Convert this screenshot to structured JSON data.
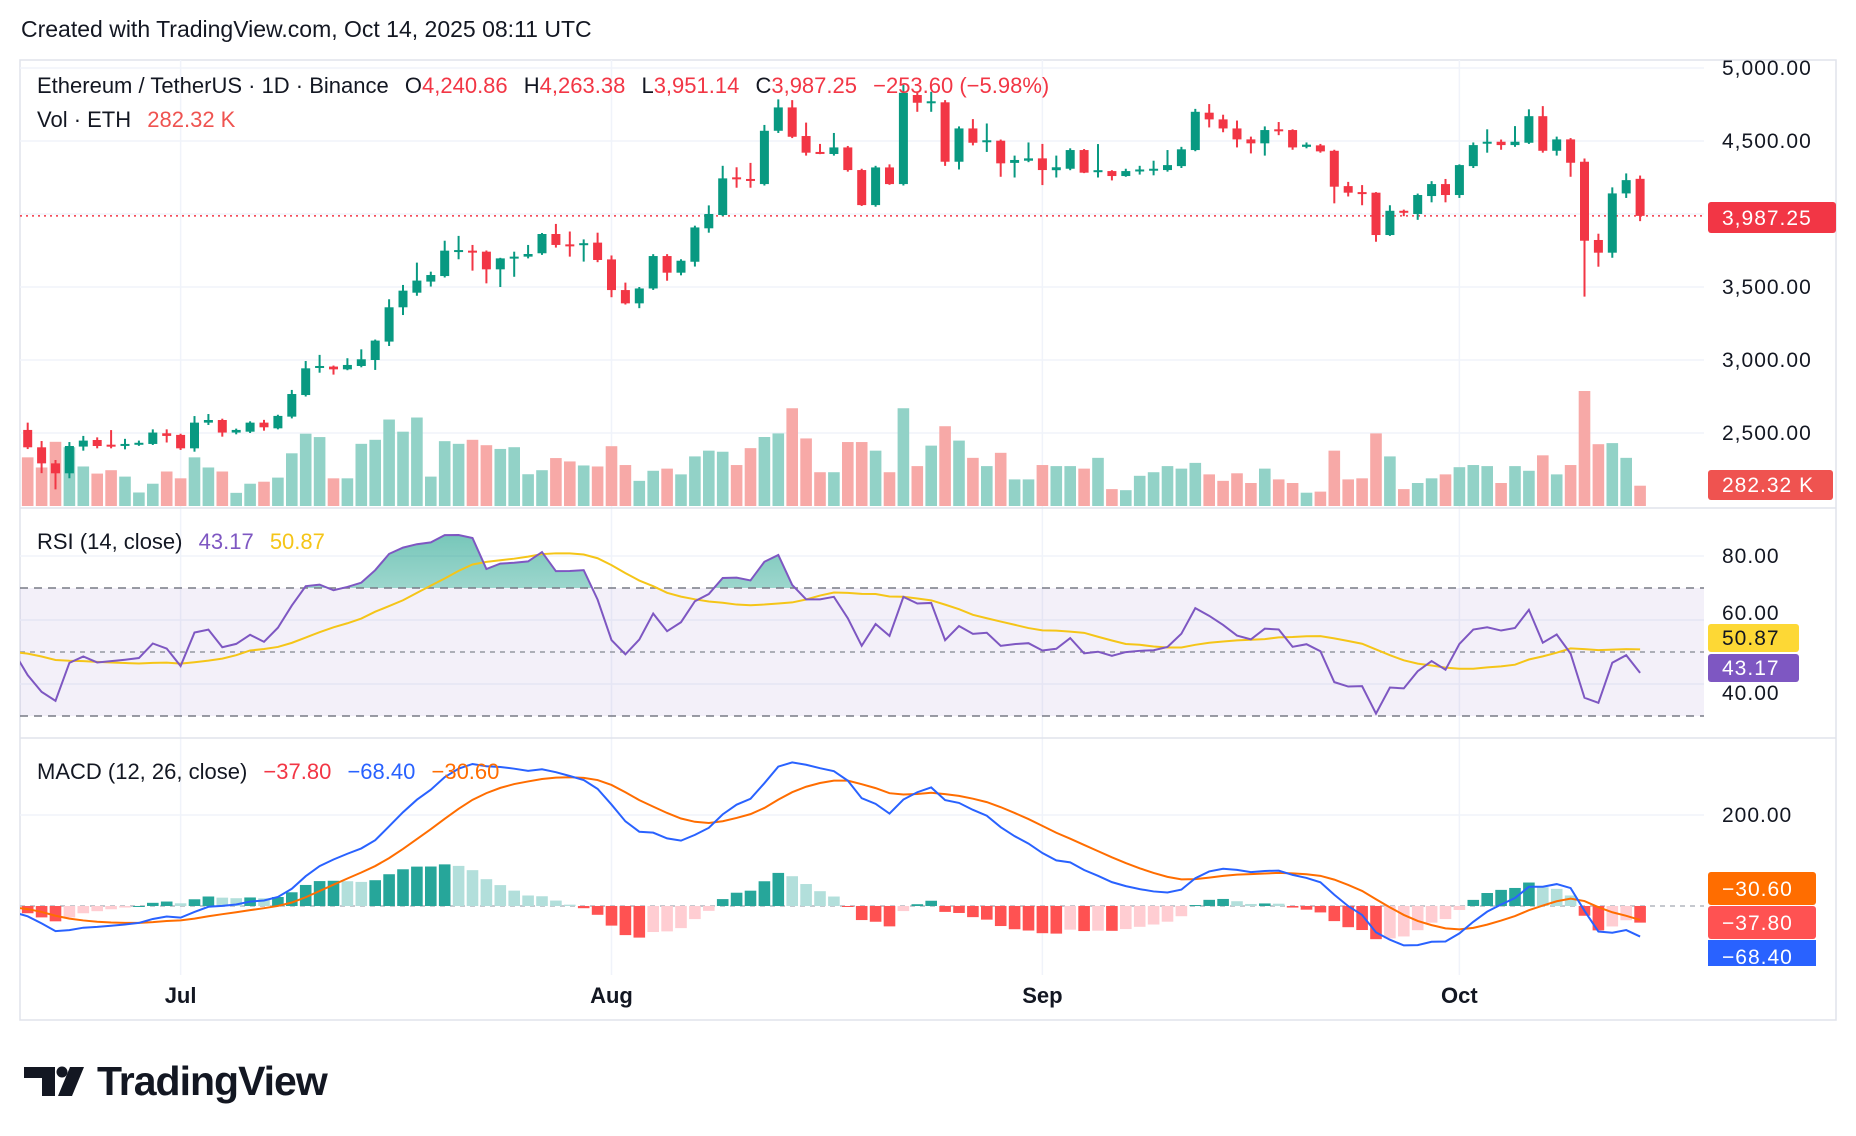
{
  "header": {
    "created": "Created with TradingView.com, Oct 14, 2025 08:11 UTC"
  },
  "legend": {
    "symbol": "Ethereum / TetherUS · 1D · Binance",
    "o_label": "O",
    "o": "4,240.86",
    "h_label": "H",
    "h": "4,263.38",
    "l_label": "L",
    "l": "3,951.14",
    "c_label": "C",
    "c": "3,987.25",
    "change": "−253.60 (−5.98%)",
    "vol_label": "Vol · ETH",
    "vol": "282.32 K"
  },
  "rsi_legend": {
    "title": "RSI (14, close)",
    "rsi": "43.17",
    "ma": "50.87"
  },
  "macd_legend": {
    "title": "MACD (12, 26, close)",
    "hist": "−37.80",
    "macd": "−68.40",
    "signal": "−30.60"
  },
  "tags": {
    "last_price": "3,987.25",
    "volume": "282.32 K",
    "rsi_ma": "50.87",
    "rsi": "43.17",
    "macd_signal": "−30.60",
    "macd_hist": "−37.80",
    "macd": "−68.40"
  },
  "colors": {
    "up": "#089981",
    "down": "#f23645",
    "vol_up": "#92d2c7",
    "vol_down": "#f7a9a7",
    "rsi": "#7e57c2",
    "rsi_ma": "#f5c518",
    "macd": "#2962ff",
    "signal": "#ff6d00",
    "hist_up_strong": "#26a69a",
    "hist_up_weak": "#b2dfdb",
    "hist_down_strong": "#ff5252",
    "hist_down_weak": "#ffcdd2",
    "grid": "#f0f3fa"
  },
  "logo": {
    "text": "TradingView"
  },
  "chart_data": [
    {
      "type": "candlestick",
      "title": "Ethereum / TetherUS · 1D · Binance",
      "y_ticks": [
        {
          "v": 5000,
          "label": "5,000.00"
        },
        {
          "v": 4500,
          "label": "4,500.00"
        },
        {
          "v": 3500,
          "label": "3,500.00"
        },
        {
          "v": 3000,
          "label": "3,000.00"
        },
        {
          "v": 2500,
          "label": "2,500.00"
        }
      ],
      "ylim": [
        2250,
        5100
      ],
      "last_price_line": 3987.25,
      "x_ticks": [
        {
          "date": "2025-07-01",
          "label": "Jul"
        },
        {
          "date": "2025-08-01",
          "label": "Aug"
        },
        {
          "date": "2025-09-01",
          "label": "Sep"
        },
        {
          "date": "2025-10-01",
          "label": "Oct"
        }
      ],
      "columns": [
        "date",
        "open",
        "high",
        "low",
        "close",
        "volume_k"
      ],
      "candles": [
        [
          "2025-06-19",
          2540,
          2580,
          2500,
          2525,
          290
        ],
        [
          "2025-06-20",
          2521,
          2571,
          2390,
          2402,
          677
        ],
        [
          "2025-06-21",
          2402,
          2445,
          2225,
          2292,
          536
        ],
        [
          "2025-06-22",
          2292,
          2315,
          2114,
          2224,
          893
        ],
        [
          "2025-06-23",
          2224,
          2438,
          2190,
          2411,
          818
        ],
        [
          "2025-06-24",
          2407,
          2480,
          2379,
          2448,
          550
        ],
        [
          "2025-06-25",
          2452,
          2470,
          2395,
          2411,
          451
        ],
        [
          "2025-06-26",
          2420,
          2520,
          2395,
          2418,
          498
        ],
        [
          "2025-06-27",
          2418,
          2460,
          2388,
          2425,
          409
        ],
        [
          "2025-06-28",
          2425,
          2448,
          2412,
          2433,
          188
        ],
        [
          "2025-06-29",
          2425,
          2525,
          2418,
          2503,
          310
        ],
        [
          "2025-06-30",
          2498,
          2525,
          2435,
          2480,
          480
        ],
        [
          "2025-07-01",
          2487,
          2495,
          2384,
          2395,
          385
        ],
        [
          "2025-07-02",
          2395,
          2616,
          2372,
          2571,
          677
        ],
        [
          "2025-07-03",
          2571,
          2630,
          2555,
          2589,
          536
        ],
        [
          "2025-07-04",
          2589,
          2598,
          2475,
          2503,
          480
        ],
        [
          "2025-07-05",
          2503,
          2530,
          2491,
          2521,
          183
        ],
        [
          "2025-07-06",
          2509,
          2580,
          2500,
          2571,
          310
        ],
        [
          "2025-07-07",
          2571,
          2590,
          2516,
          2539,
          338
        ],
        [
          "2025-07-08",
          2532,
          2625,
          2525,
          2617,
          395
        ],
        [
          "2025-07-09",
          2612,
          2795,
          2600,
          2767,
          733
        ],
        [
          "2025-07-10",
          2760,
          2993,
          2750,
          2943,
          1006
        ],
        [
          "2025-07-11",
          2950,
          3035,
          2913,
          2959,
          959
        ],
        [
          "2025-07-12",
          2955,
          2962,
          2900,
          2936,
          385
        ],
        [
          "2025-07-13",
          2936,
          3012,
          2930,
          2966,
          385
        ],
        [
          "2025-07-14",
          2959,
          3073,
          2950,
          3005,
          865
        ],
        [
          "2025-07-15",
          3000,
          3140,
          2932,
          3133,
          921
        ],
        [
          "2025-07-16",
          3126,
          3416,
          3096,
          3361,
          1203
        ],
        [
          "2025-07-17",
          3361,
          3514,
          3308,
          3475,
          1034
        ],
        [
          "2025-07-18",
          3461,
          3667,
          3440,
          3544,
          1231
        ],
        [
          "2025-07-19",
          3537,
          3605,
          3503,
          3582,
          409
        ],
        [
          "2025-07-20",
          3575,
          3817,
          3565,
          3749,
          902
        ],
        [
          "2025-07-21",
          3749,
          3850,
          3690,
          3753,
          865
        ],
        [
          "2025-07-22",
          3749,
          3788,
          3612,
          3742,
          921
        ],
        [
          "2025-07-23",
          3742,
          3750,
          3525,
          3621,
          846
        ],
        [
          "2025-07-24",
          3621,
          3700,
          3500,
          3696,
          794
        ],
        [
          "2025-07-25",
          3696,
          3742,
          3570,
          3708,
          818
        ],
        [
          "2025-07-26",
          3708,
          3788,
          3696,
          3726,
          442
        ],
        [
          "2025-07-27",
          3731,
          3870,
          3720,
          3863,
          498
        ],
        [
          "2025-07-28",
          3863,
          3932,
          3770,
          3788,
          667
        ],
        [
          "2025-07-29",
          3792,
          3880,
          3708,
          3790,
          620
        ],
        [
          "2025-07-30",
          3792,
          3826,
          3674,
          3800,
          564
        ],
        [
          "2025-07-31",
          3804,
          3872,
          3670,
          3685,
          550
        ],
        [
          "2025-08-01",
          3689,
          3716,
          3430,
          3479,
          832
        ],
        [
          "2025-08-02",
          3479,
          3530,
          3380,
          3388,
          570
        ],
        [
          "2025-08-03",
          3388,
          3500,
          3355,
          3490,
          350
        ],
        [
          "2025-08-04",
          3490,
          3725,
          3480,
          3712,
          490
        ],
        [
          "2025-08-05",
          3712,
          3725,
          3543,
          3598,
          520
        ],
        [
          "2025-08-06",
          3598,
          3690,
          3580,
          3680,
          440
        ],
        [
          "2025-08-07",
          3673,
          3920,
          3640,
          3908,
          690
        ],
        [
          "2025-08-08",
          3902,
          4059,
          3872,
          4000,
          770
        ],
        [
          "2025-08-09",
          3993,
          4330,
          3985,
          4244,
          755
        ],
        [
          "2025-08-10",
          4251,
          4320,
          4180,
          4249,
          570
        ],
        [
          "2025-08-11",
          4240,
          4350,
          4180,
          4233,
          805
        ],
        [
          "2025-08-12",
          4205,
          4610,
          4195,
          4570,
          960
        ],
        [
          "2025-08-13",
          4570,
          4785,
          4555,
          4730,
          1010
        ],
        [
          "2025-08-14",
          4730,
          4780,
          4520,
          4529,
          1360
        ],
        [
          "2025-08-15",
          4534,
          4626,
          4400,
          4420,
          940
        ],
        [
          "2025-08-16",
          4425,
          4480,
          4410,
          4420,
          470
        ],
        [
          "2025-08-17",
          4411,
          4555,
          4400,
          4456,
          470
        ],
        [
          "2025-08-18",
          4456,
          4466,
          4290,
          4301,
          890
        ],
        [
          "2025-08-19",
          4301,
          4310,
          4055,
          4061,
          890
        ],
        [
          "2025-08-20",
          4061,
          4330,
          4050,
          4319,
          770
        ],
        [
          "2025-08-21",
          4319,
          4340,
          4200,
          4205,
          470
        ],
        [
          "2025-08-22",
          4205,
          4885,
          4195,
          4830,
          1360
        ],
        [
          "2025-08-23",
          4815,
          4830,
          4700,
          4762,
          555
        ],
        [
          "2025-08-24",
          4762,
          4837,
          4700,
          4772,
          840
        ],
        [
          "2025-08-25",
          4765,
          4780,
          4330,
          4358,
          1110
        ],
        [
          "2025-08-26",
          4358,
          4600,
          4305,
          4586,
          910
        ],
        [
          "2025-08-27",
          4586,
          4650,
          4470,
          4488,
          670
        ],
        [
          "2025-08-28",
          4500,
          4620,
          4425,
          4505,
          555
        ],
        [
          "2025-08-29",
          4502,
          4510,
          4255,
          4347,
          740
        ],
        [
          "2025-08-30",
          4350,
          4400,
          4250,
          4370,
          370
        ],
        [
          "2025-08-31",
          4365,
          4490,
          4355,
          4381,
          370
        ],
        [
          "2025-09-01",
          4381,
          4480,
          4198,
          4301,
          570
        ],
        [
          "2025-09-02",
          4300,
          4400,
          4250,
          4320,
          555
        ],
        [
          "2025-09-03",
          4310,
          4450,
          4300,
          4438,
          555
        ],
        [
          "2025-09-04",
          4438,
          4445,
          4280,
          4283,
          520
        ],
        [
          "2025-09-05",
          4290,
          4479,
          4250,
          4300,
          670
        ],
        [
          "2025-09-06",
          4294,
          4300,
          4230,
          4260,
          235
        ],
        [
          "2025-09-07",
          4260,
          4310,
          4255,
          4294,
          220
        ],
        [
          "2025-09-08",
          4295,
          4330,
          4270,
          4305,
          420
        ],
        [
          "2025-09-09",
          4300,
          4365,
          4265,
          4310,
          470
        ],
        [
          "2025-09-10",
          4301,
          4438,
          4290,
          4335,
          555
        ],
        [
          "2025-09-11",
          4328,
          4460,
          4315,
          4443,
          520
        ],
        [
          "2025-09-12",
          4438,
          4720,
          4430,
          4700,
          600
        ],
        [
          "2025-09-13",
          4694,
          4753,
          4593,
          4648,
          440
        ],
        [
          "2025-09-14",
          4648,
          4680,
          4560,
          4586,
          350
        ],
        [
          "2025-09-15",
          4586,
          4640,
          4456,
          4511,
          455
        ],
        [
          "2025-09-16",
          4511,
          4530,
          4415,
          4484,
          320
        ],
        [
          "2025-09-17",
          4484,
          4600,
          4400,
          4575,
          520
        ],
        [
          "2025-09-18",
          4580,
          4630,
          4540,
          4570,
          370
        ],
        [
          "2025-09-19",
          4575,
          4580,
          4440,
          4456,
          320
        ],
        [
          "2025-09-20",
          4460,
          4490,
          4450,
          4475,
          185
        ],
        [
          "2025-09-21",
          4470,
          4480,
          4420,
          4429,
          200
        ],
        [
          "2025-09-22",
          4433,
          4440,
          4073,
          4187,
          770
        ],
        [
          "2025-09-23",
          4191,
          4220,
          4120,
          4146,
          370
        ],
        [
          "2025-09-24",
          4150,
          4198,
          4060,
          4148,
          385
        ],
        [
          "2025-09-25",
          4146,
          4150,
          3810,
          3856,
          1010
        ],
        [
          "2025-09-26",
          3856,
          4060,
          3850,
          4022,
          690
        ],
        [
          "2025-09-27",
          4022,
          4030,
          3985,
          4013,
          235
        ],
        [
          "2025-09-28",
          4000,
          4140,
          3960,
          4130,
          320
        ],
        [
          "2025-09-29",
          4123,
          4225,
          4080,
          4205,
          385
        ],
        [
          "2025-09-30",
          4205,
          4240,
          4080,
          4130,
          440
        ],
        [
          "2025-10-01",
          4130,
          4340,
          4110,
          4335,
          540
        ],
        [
          "2025-10-02",
          4328,
          4490,
          4315,
          4472,
          570
        ],
        [
          "2025-10-03",
          4485,
          4580,
          4420,
          4495,
          555
        ],
        [
          "2025-10-04",
          4495,
          4510,
          4440,
          4472,
          320
        ],
        [
          "2025-10-05",
          4472,
          4602,
          4460,
          4495,
          555
        ],
        [
          "2025-10-06",
          4488,
          4717,
          4480,
          4670,
          490
        ],
        [
          "2025-10-07",
          4670,
          4739,
          4420,
          4433,
          705
        ],
        [
          "2025-10-08",
          4433,
          4530,
          4400,
          4511,
          440
        ],
        [
          "2025-10-09",
          4511,
          4520,
          4255,
          4351,
          570
        ],
        [
          "2025-10-10",
          4358,
          4380,
          3434,
          3817,
          1600
        ],
        [
          "2025-10-11",
          3822,
          3865,
          3639,
          3735,
          860
        ],
        [
          "2025-10-12",
          3735,
          4182,
          3700,
          4141,
          875
        ],
        [
          "2025-10-13",
          4141,
          4278,
          4110,
          4232,
          670
        ],
        [
          "2025-10-14",
          4240.86,
          4263.38,
          3951.14,
          3987.25,
          282.32
        ]
      ]
    },
    {
      "type": "line",
      "title": "RSI (14, close)",
      "series": [
        {
          "name": "RSI",
          "length": 14,
          "last": 43.17
        },
        {
          "name": "RSI-based MA",
          "length": 14,
          "last": 50.87
        }
      ],
      "bands": {
        "upper": 70,
        "middle": 50,
        "lower": 30
      },
      "y_ticks": [
        {
          "v": 80,
          "label": "80.00"
        },
        {
          "v": 60,
          "label": "60.00"
        },
        {
          "v": 40,
          "label": "40.00"
        }
      ],
      "ylim": [
        23,
        95
      ]
    },
    {
      "type": "bar+line",
      "title": "MACD (12, 26, close)",
      "params": {
        "fast": 12,
        "slow": 26,
        "signal": 9
      },
      "last": {
        "histogram": -37.8,
        "macd": -68.4,
        "signal": -30.6
      },
      "y_ticks": [
        {
          "v": 200,
          "label": "200.00"
        }
      ],
      "ylim": [
        -150,
        370
      ]
    }
  ]
}
